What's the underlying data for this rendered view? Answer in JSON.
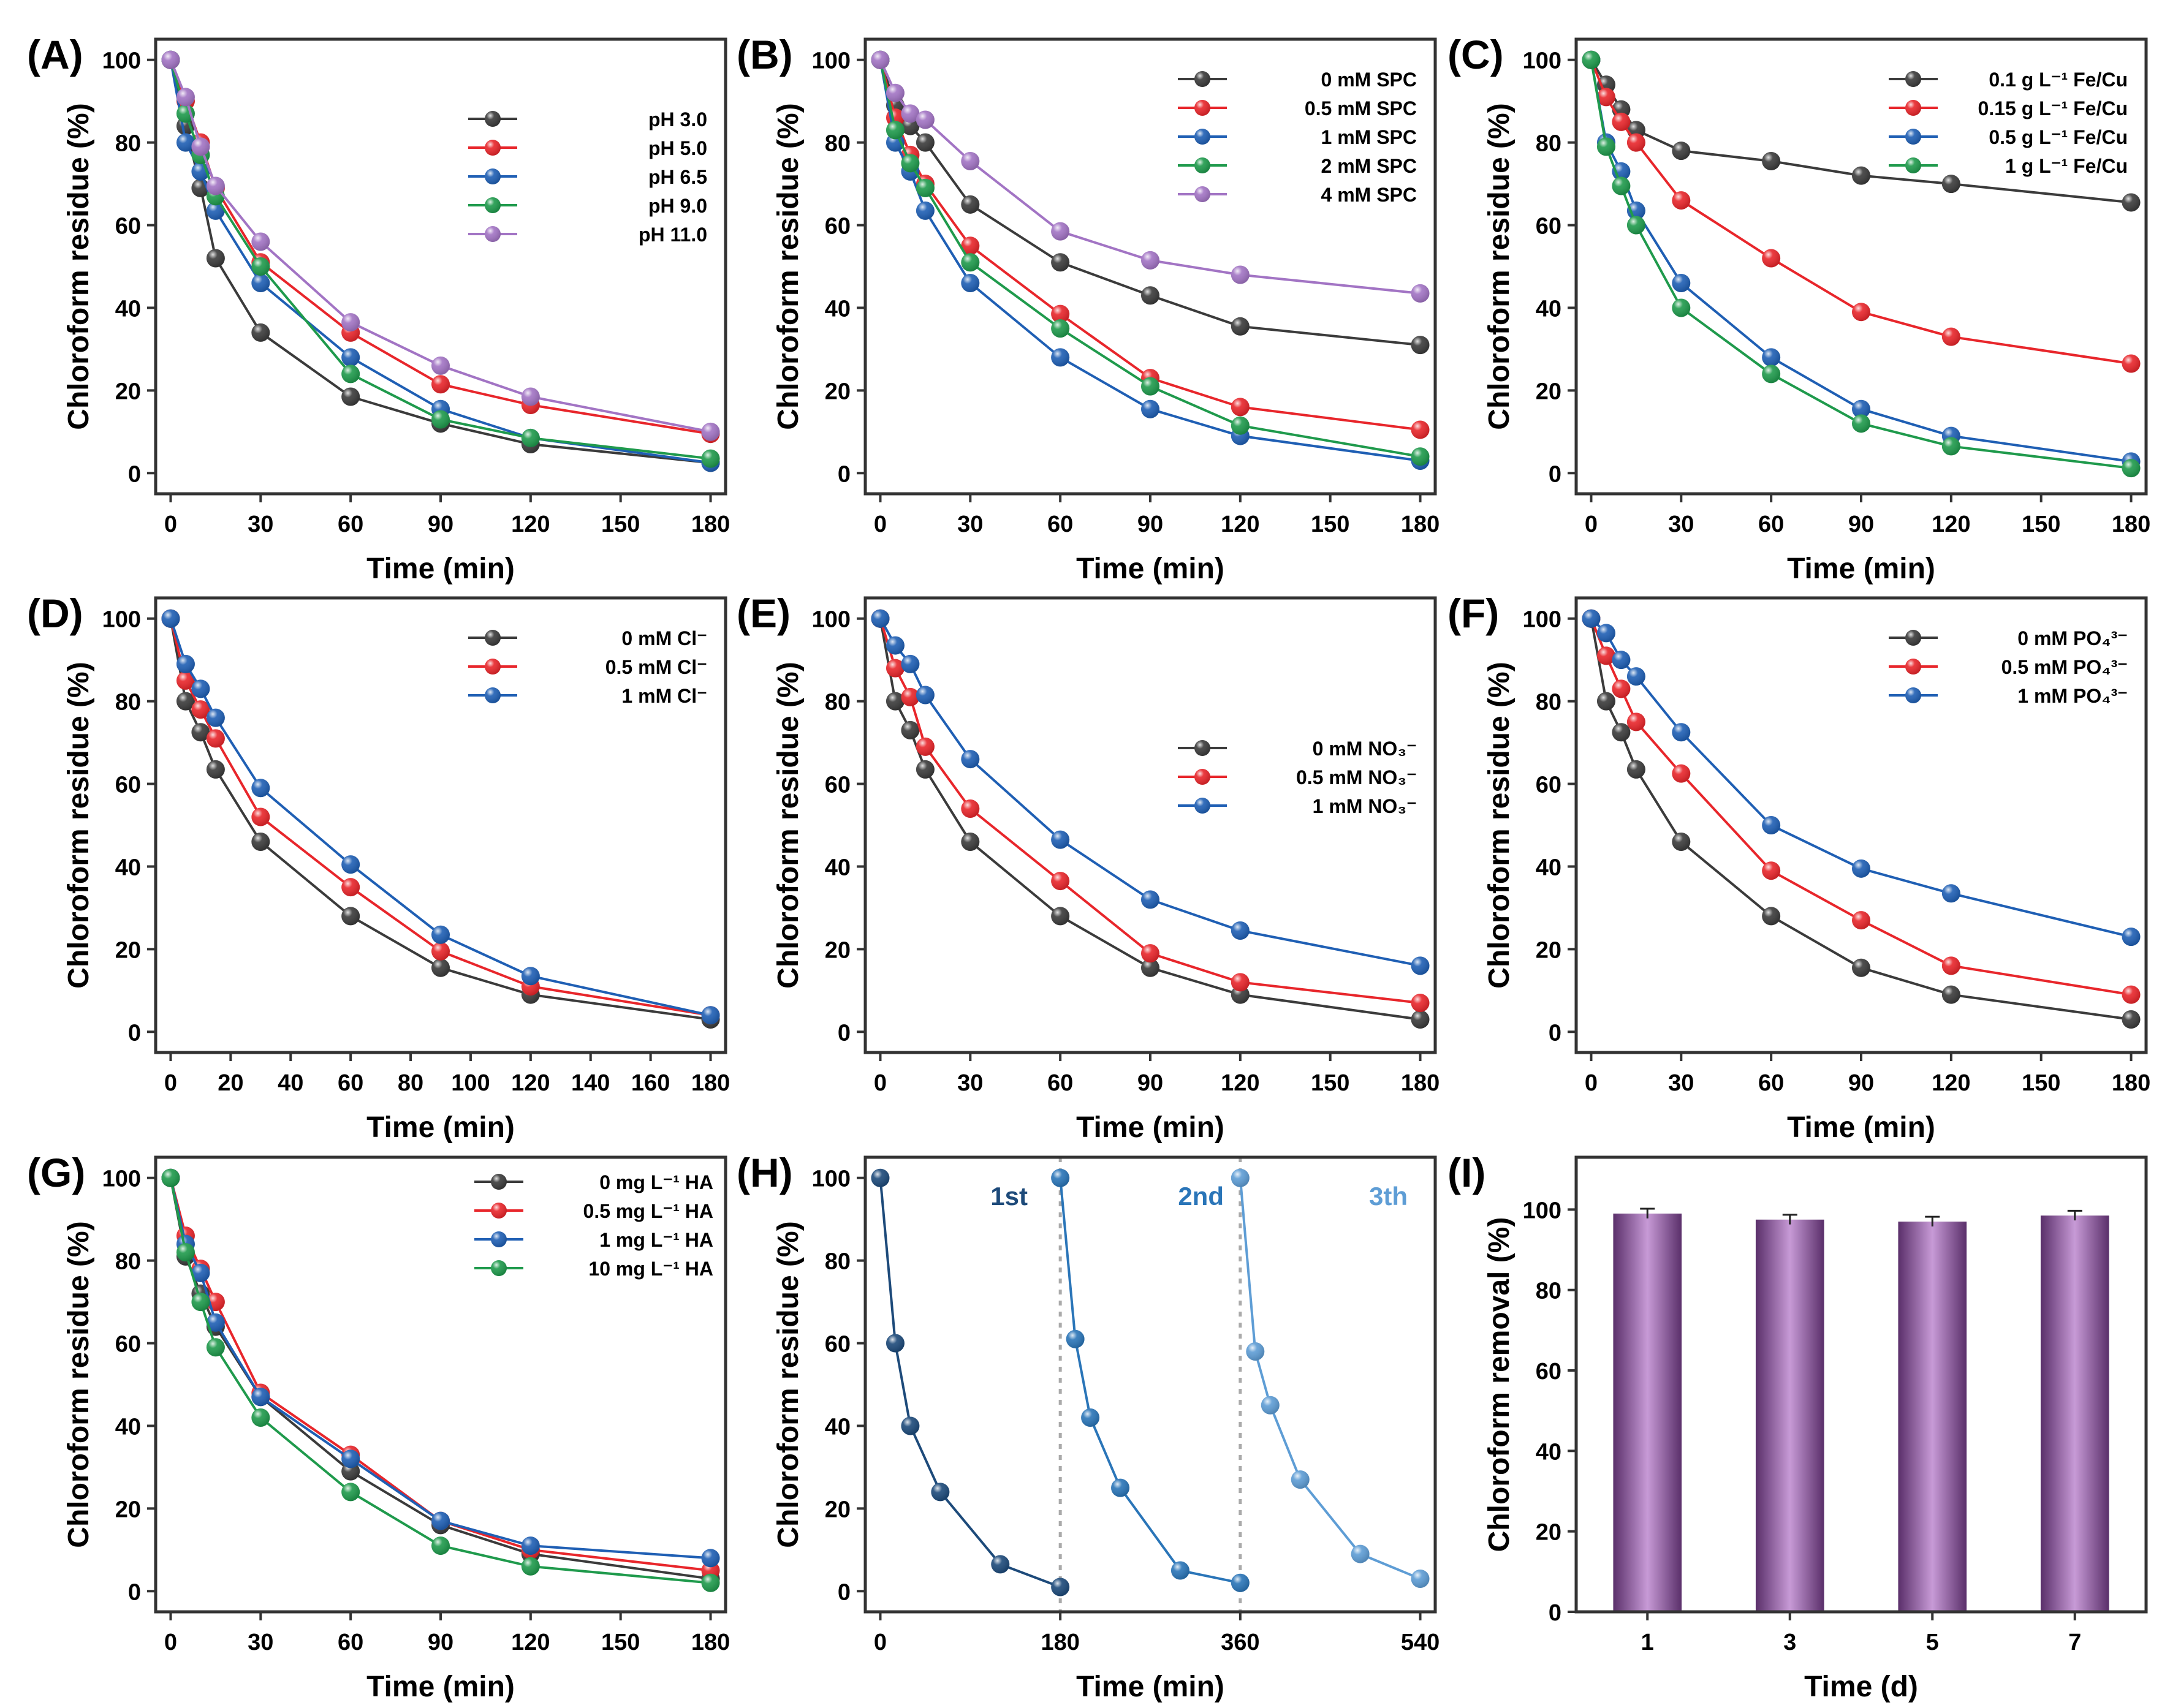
{
  "chart_data": [
    {
      "panel": "(A)",
      "type": "line",
      "xlabel": "Time (min)",
      "ylabel": "Chloroform residue (%)",
      "xlim": [
        -5,
        185
      ],
      "ylim": [
        -5,
        105
      ],
      "xticks": [
        0,
        30,
        60,
        90,
        120,
        150,
        180
      ],
      "yticks": [
        0,
        20,
        40,
        60,
        80,
        100
      ],
      "legend": "center-right",
      "grid": false,
      "x": [
        0,
        5,
        10,
        15,
        30,
        60,
        90,
        120,
        180
      ],
      "series": [
        {
          "name": "pH   3.0",
          "color": "#3b3b3b",
          "values": [
            100,
            84,
            69,
            52,
            34,
            18.5,
            12,
            7,
            2.5
          ]
        },
        {
          "name": "pH   5.0",
          "color": "#e8262b",
          "values": [
            100,
            90,
            80,
            69,
            51,
            34,
            21.5,
            16.5,
            9.5
          ]
        },
        {
          "name": "pH   6.5",
          "color": "#1f5fb4",
          "values": [
            100,
            80,
            73,
            63.5,
            46,
            28,
            15.5,
            8.5,
            2.5
          ]
        },
        {
          "name": "pH   9.0",
          "color": "#1f9a4c",
          "values": [
            100,
            87,
            77,
            67,
            50,
            24,
            13,
            8.5,
            3.5
          ]
        },
        {
          "name": "pH 11.0",
          "color": "#a274c4",
          "values": [
            100,
            91,
            79,
            69.5,
            56,
            36.5,
            26,
            18.5,
            10
          ]
        }
      ]
    },
    {
      "panel": "(B)",
      "type": "line",
      "xlabel": "Time (min)",
      "ylabel": "Chloroform residue (%)",
      "xlim": [
        -5,
        185
      ],
      "ylim": [
        -5,
        105
      ],
      "xticks": [
        0,
        30,
        60,
        90,
        120,
        150,
        180
      ],
      "yticks": [
        0,
        20,
        40,
        60,
        80,
        100
      ],
      "legend": "top-right",
      "grid": false,
      "x": [
        0,
        5,
        10,
        15,
        30,
        60,
        90,
        120,
        180
      ],
      "series": [
        {
          "name": "0 mM SPC",
          "color": "#3b3b3b",
          "values": [
            100,
            89,
            84,
            80,
            65,
            51,
            43,
            35.5,
            31
          ]
        },
        {
          "name": "0.5 mM SPC",
          "color": "#e8262b",
          "values": [
            100,
            86,
            77,
            70,
            55,
            38.5,
            23,
            16,
            10.5
          ]
        },
        {
          "name": "1 mM SPC",
          "color": "#1f5fb4",
          "values": [
            100,
            80,
            73,
            63.5,
            46,
            28,
            15.5,
            9,
            3
          ]
        },
        {
          "name": "2 mM SPC",
          "color": "#1f9a4c",
          "values": [
            100,
            83,
            75,
            69,
            51,
            35,
            21,
            11.5,
            4
          ]
        },
        {
          "name": "4 mM SPC",
          "color": "#a274c4",
          "values": [
            100,
            92,
            87,
            85.5,
            75.5,
            58.5,
            51.5,
            48,
            43.5
          ]
        }
      ]
    },
    {
      "panel": "(C)",
      "type": "line",
      "xlabel": "Time (min)",
      "ylabel": "Chloroform residue (%)",
      "xlim": [
        -5,
        185
      ],
      "ylim": [
        -5,
        105
      ],
      "xticks": [
        0,
        30,
        60,
        90,
        120,
        150,
        180
      ],
      "yticks": [
        0,
        20,
        40,
        60,
        80,
        100
      ],
      "legend": "top-right",
      "grid": false,
      "x": [
        0,
        5,
        10,
        15,
        30,
        60,
        90,
        120,
        180
      ],
      "series": [
        {
          "name": "0.1 g L⁻¹ Fe/Cu",
          "color": "#3b3b3b",
          "values": [
            100,
            94,
            88,
            83,
            78,
            75.5,
            72,
            70,
            65.5
          ]
        },
        {
          "name": "0.15 g L⁻¹ Fe/Cu",
          "color": "#e8262b",
          "values": [
            100,
            91,
            85,
            80,
            66,
            52,
            39,
            33,
            26.5
          ]
        },
        {
          "name": "0.5 g L⁻¹ Fe/Cu",
          "color": "#1f5fb4",
          "values": [
            100,
            80,
            73,
            63.5,
            46,
            28,
            15.5,
            9,
            2.8
          ]
        },
        {
          "name": "1 g L⁻¹ Fe/Cu",
          "color": "#1f9a4c",
          "values": [
            100,
            79,
            69.5,
            60,
            40,
            24,
            12,
            6.5,
            1.2
          ]
        }
      ]
    },
    {
      "panel": "(D)",
      "type": "line",
      "xlabel": "Time (min)",
      "ylabel": "Chloroform residue (%)",
      "xlim": [
        -5,
        185
      ],
      "ylim": [
        -5,
        105
      ],
      "xticks": [
        0,
        20,
        40,
        60,
        80,
        100,
        120,
        140,
        160,
        180
      ],
      "yticks": [
        0,
        20,
        40,
        60,
        80,
        100
      ],
      "legend": "top-right",
      "grid": false,
      "x": [
        0,
        5,
        10,
        15,
        30,
        60,
        90,
        120,
        180
      ],
      "series": [
        {
          "name": "0 mM Cl⁻",
          "color": "#3b3b3b",
          "values": [
            100,
            80,
            72.5,
            63.5,
            46,
            28,
            15.5,
            9,
            3
          ]
        },
        {
          "name": "0.5 mM Cl⁻",
          "color": "#e8262b",
          "values": [
            100,
            85,
            78,
            71,
            52,
            35,
            19.5,
            11,
            4
          ]
        },
        {
          "name": "1 mM Cl⁻",
          "color": "#1f5fb4",
          "values": [
            100,
            89,
            83,
            76,
            59,
            40.5,
            23.5,
            13.5,
            4
          ]
        }
      ]
    },
    {
      "panel": "(E)",
      "type": "line",
      "xlabel": "Time (min)",
      "ylabel": "Chloroform residue (%)",
      "xlim": [
        -5,
        185
      ],
      "ylim": [
        -5,
        105
      ],
      "xticks": [
        0,
        30,
        60,
        90,
        120,
        150,
        180
      ],
      "yticks": [
        0,
        20,
        40,
        60,
        80,
        100
      ],
      "legend": "center-right",
      "grid": false,
      "x": [
        0,
        5,
        10,
        15,
        30,
        60,
        90,
        120,
        180
      ],
      "series": [
        {
          "name": "0 mM NO₃⁻",
          "color": "#3b3b3b",
          "values": [
            100,
            80,
            73,
            63.5,
            46,
            28,
            15.5,
            9,
            3
          ]
        },
        {
          "name": "0.5 mM NO₃⁻",
          "color": "#e8262b",
          "values": [
            100,
            88,
            81,
            69,
            54,
            36.5,
            19,
            12,
            7
          ]
        },
        {
          "name": "1 mM NO₃⁻",
          "color": "#1f5fb4",
          "values": [
            100,
            93.5,
            89,
            81.5,
            66,
            46.5,
            32,
            24.5,
            16
          ]
        }
      ]
    },
    {
      "panel": "(F)",
      "type": "line",
      "xlabel": "Time (min)",
      "ylabel": "Chloroform residue (%)",
      "xlim": [
        -5,
        185
      ],
      "ylim": [
        -5,
        105
      ],
      "xticks": [
        0,
        30,
        60,
        90,
        120,
        150,
        180
      ],
      "yticks": [
        0,
        20,
        40,
        60,
        80,
        100
      ],
      "legend": "top-right",
      "grid": false,
      "x": [
        0,
        5,
        10,
        15,
        30,
        60,
        90,
        120,
        180
      ],
      "series": [
        {
          "name": "0 mM PO₄³⁻",
          "color": "#3b3b3b",
          "values": [
            100,
            80,
            72.5,
            63.5,
            46,
            28,
            15.5,
            9,
            3
          ]
        },
        {
          "name": "0.5 mM PO₄³⁻",
          "color": "#e8262b",
          "values": [
            100,
            91,
            83,
            75,
            62.5,
            39,
            27,
            16,
            9
          ]
        },
        {
          "name": "1 mM PO₄³⁻",
          "color": "#1f5fb4",
          "values": [
            100,
            96.5,
            90,
            86,
            72.5,
            50,
            39.5,
            33.5,
            23
          ]
        }
      ]
    },
    {
      "panel": "(G)",
      "type": "line",
      "xlabel": "Time (min)",
      "ylabel": "Chloroform residue (%)",
      "xlim": [
        -5,
        185
      ],
      "ylim": [
        -5,
        105
      ],
      "xticks": [
        0,
        30,
        60,
        90,
        120,
        150,
        180
      ],
      "yticks": [
        0,
        20,
        40,
        60,
        80,
        100
      ],
      "legend": "top-center",
      "grid": false,
      "x": [
        0,
        5,
        10,
        15,
        30,
        60,
        90,
        120,
        180
      ],
      "series": [
        {
          "name": "0 mg L⁻¹ HA",
          "color": "#3b3b3b",
          "values": [
            100,
            81,
            72,
            64,
            47,
            29,
            16,
            9,
            3
          ]
        },
        {
          "name": "0.5 mg L⁻¹ HA",
          "color": "#e8262b",
          "values": [
            100,
            86,
            78,
            70,
            48,
            33,
            17,
            10,
            5
          ]
        },
        {
          "name": "1 mg L⁻¹ HA",
          "color": "#1f5fb4",
          "values": [
            100,
            84,
            77,
            65,
            47,
            32,
            17,
            11,
            8
          ]
        },
        {
          "name": "10 mg L⁻¹ HA",
          "color": "#1f9a4c",
          "values": [
            100,
            82,
            70,
            59,
            42,
            24,
            11,
            6,
            2
          ]
        }
      ]
    },
    {
      "panel": "(H)",
      "type": "line",
      "xlabel": "Time (min)",
      "ylabel": "Chloroform residue (%)",
      "xlim": [
        -15,
        555
      ],
      "ylim": [
        -5,
        105
      ],
      "xticks": [
        0,
        180,
        360,
        540
      ],
      "yticks": [
        0,
        20,
        40,
        60,
        80,
        100
      ],
      "legend": "none",
      "grid": false,
      "cycle_dividers": [
        180,
        360
      ],
      "series": [
        {
          "label": "1st",
          "color": "#1d4a7a",
          "x": [
            0,
            15,
            30,
            60,
            120,
            180
          ],
          "values": [
            100,
            60,
            40,
            24,
            6.5,
            1
          ]
        },
        {
          "label": "2nd",
          "color": "#2a75b8",
          "x": [
            180,
            195,
            210,
            240,
            300,
            360
          ],
          "values": [
            100,
            61,
            42,
            25,
            5,
            2
          ]
        },
        {
          "label": "3th",
          "color": "#5e9dd5",
          "x": [
            360,
            375,
            390,
            420,
            480,
            540
          ],
          "values": [
            100,
            58,
            45,
            27,
            9,
            3
          ]
        }
      ]
    },
    {
      "panel": "(I)",
      "type": "bar",
      "xlabel": "Time (d)",
      "ylabel": "Chloroform removal (%)",
      "ylim": [
        0,
        113
      ],
      "categories": [
        "1",
        "3",
        "5",
        "7"
      ],
      "yticks": [
        0,
        20,
        40,
        60,
        80,
        100
      ],
      "values": [
        99,
        97.5,
        97,
        98.5
      ],
      "color": "#8e5aa0",
      "grid": false
    }
  ]
}
